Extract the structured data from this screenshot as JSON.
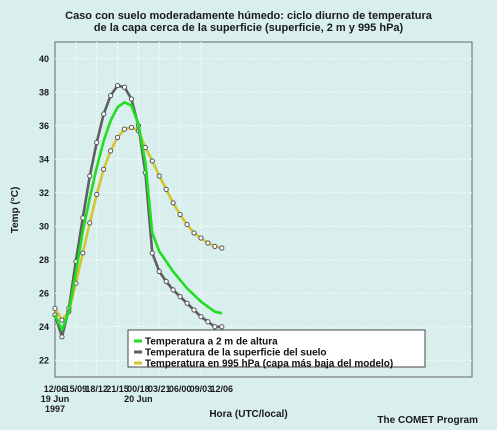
{
  "chart_data": {
    "type": "line",
    "title_line1": "Caso con suelo moderadamente húmedo: ciclo diurno de temperatura",
    "title_line2": "de la capa cerca de la superficie (superficie, 2 m y 995 hPa)",
    "xlabel": "Hora (UTC/local)",
    "ylabel": "Temp (°C)",
    "credit": "The COMET Program",
    "ylim": [
      21,
      41
    ],
    "xlim": [
      12,
      72
    ],
    "yticks": [
      22,
      24,
      26,
      28,
      30,
      32,
      34,
      36,
      38,
      40
    ],
    "xticks": [
      {
        "x": 12,
        "label": "12/06",
        "sub": [
          "19 Jun",
          "1997"
        ]
      },
      {
        "x": 15,
        "label": "15/09",
        "sub": []
      },
      {
        "x": 18,
        "label": "18/12",
        "sub": []
      },
      {
        "x": 21,
        "label": "21/15",
        "sub": []
      },
      {
        "x": 24,
        "label": "00/18",
        "sub": [
          "20 Jun"
        ]
      },
      {
        "x": 27,
        "label": "03/21",
        "sub": []
      },
      {
        "x": 30,
        "label": "06/00",
        "sub": []
      },
      {
        "x": 33,
        "label": "09/03",
        "sub": []
      },
      {
        "x": 36,
        "label": "12/06",
        "sub": []
      }
    ],
    "x": [
      12,
      13,
      14,
      15,
      16,
      17,
      18,
      19,
      20,
      21,
      22,
      23,
      24,
      25,
      26,
      27,
      28,
      29,
      30,
      31,
      32,
      33,
      34,
      35,
      36
    ],
    "grid": true,
    "legend_position": "bottom-right",
    "series": [
      {
        "name": "Temperatura a 2 m de altura",
        "color": "#22dd22",
        "marker": false,
        "values": [
          24.7,
          23.8,
          24.9,
          27.2,
          29.7,
          31.7,
          33.5,
          35.1,
          36.3,
          37.1,
          37.4,
          37.2,
          36.1,
          33.8,
          29.6,
          28.5,
          27.9,
          27.3,
          26.8,
          26.3,
          25.9,
          25.5,
          25.2,
          24.9,
          24.8
        ]
      },
      {
        "name": "Temperatura de la superficie del suelo",
        "color": "#5f5f5f",
        "marker": true,
        "values": [
          24.7,
          23.4,
          25.1,
          27.9,
          30.5,
          33.0,
          35.0,
          36.7,
          37.8,
          38.4,
          38.3,
          37.6,
          36.0,
          33.2,
          28.4,
          27.3,
          26.7,
          26.2,
          25.8,
          25.4,
          25.0,
          24.6,
          24.3,
          24.0,
          24.0
        ]
      },
      {
        "name": "Temperatura en 995 hPa (capa más baja del modelo)",
        "color": "#d4c431",
        "marker": true,
        "values": [
          25.1,
          24.4,
          24.9,
          26.6,
          28.4,
          30.2,
          31.9,
          33.4,
          34.5,
          35.3,
          35.8,
          35.9,
          35.7,
          34.7,
          33.9,
          33.0,
          32.2,
          31.4,
          30.7,
          30.1,
          29.6,
          29.3,
          29.0,
          28.8,
          28.7
        ]
      }
    ]
  }
}
